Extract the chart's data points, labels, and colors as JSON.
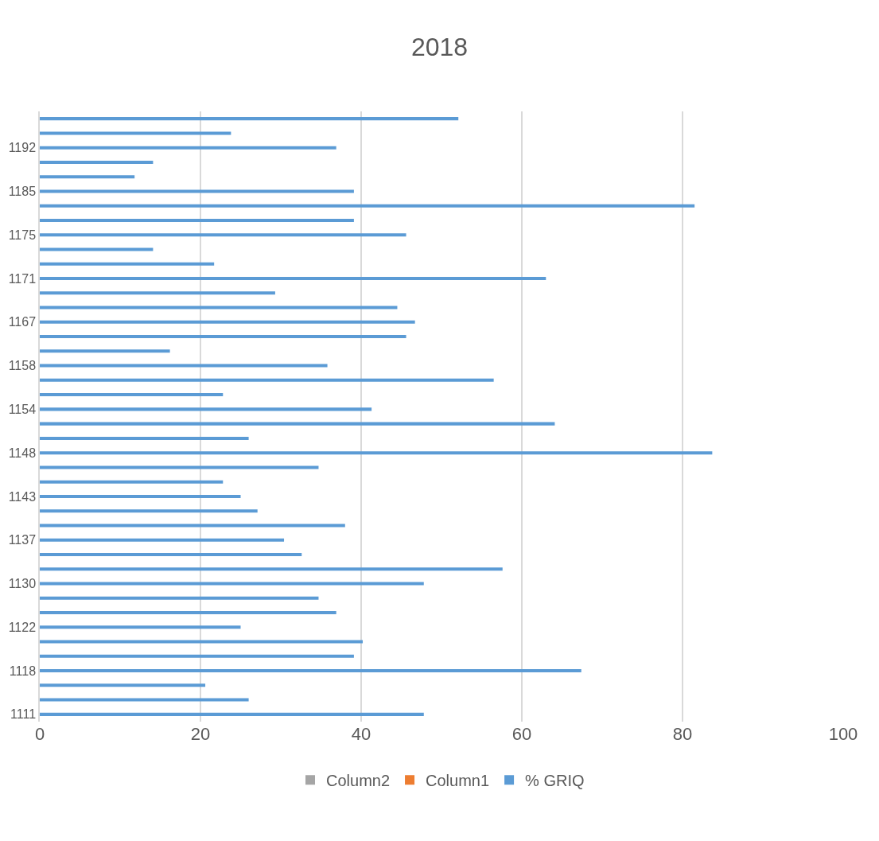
{
  "chart_data": {
    "type": "bar",
    "orientation": "horizontal",
    "title": "2018",
    "categories": [
      null,
      null,
      "1192",
      null,
      null,
      "1185",
      null,
      null,
      "1175",
      null,
      null,
      "1171",
      null,
      null,
      "1167",
      null,
      null,
      "1158",
      null,
      null,
      "1154",
      null,
      null,
      "1148",
      null,
      null,
      "1143",
      null,
      null,
      "1137",
      null,
      null,
      "1130",
      null,
      null,
      "1122",
      null,
      null,
      "1118",
      null,
      null,
      "1111"
    ],
    "series": [
      {
        "name": "Column2",
        "color": "#a5a5a5",
        "values": [
          null,
          null,
          null,
          null,
          null,
          null,
          null,
          null,
          null,
          null,
          null,
          null,
          null,
          null,
          null,
          null,
          null,
          null,
          null,
          null,
          null,
          null,
          null,
          null,
          null,
          null,
          null,
          null,
          null,
          null,
          null,
          null,
          null,
          null,
          null,
          null,
          null,
          null,
          null,
          null,
          null,
          null
        ]
      },
      {
        "name": "Column1",
        "color": "#ed7d31",
        "values": [
          null,
          null,
          null,
          null,
          null,
          null,
          null,
          null,
          null,
          null,
          null,
          null,
          null,
          null,
          null,
          null,
          null,
          null,
          null,
          null,
          null,
          null,
          null,
          null,
          null,
          null,
          null,
          null,
          null,
          null,
          null,
          null,
          null,
          null,
          null,
          null,
          null,
          null,
          null,
          null,
          null,
          null
        ]
      },
      {
        "name": "% GRIQ",
        "color": "#5b9bd5",
        "values": [
          52.1,
          23.8,
          36.9,
          14.1,
          11.8,
          39.1,
          81.5,
          39.1,
          45.6,
          14.1,
          21.7,
          63.0,
          29.3,
          44.5,
          46.7,
          45.6,
          16.2,
          35.8,
          56.5,
          22.8,
          41.3,
          64.1,
          26.0,
          83.7,
          34.7,
          22.8,
          25.0,
          27.1,
          38.0,
          30.4,
          32.6,
          57.6,
          47.8,
          34.7,
          36.9,
          25.0,
          40.2,
          39.1,
          67.4,
          20.6,
          26.0,
          47.8
        ]
      }
    ],
    "xlim": [
      0,
      100
    ],
    "xticks": [
      0,
      20,
      40,
      60,
      80,
      100
    ],
    "grid": "x",
    "legend": "bottom"
  }
}
